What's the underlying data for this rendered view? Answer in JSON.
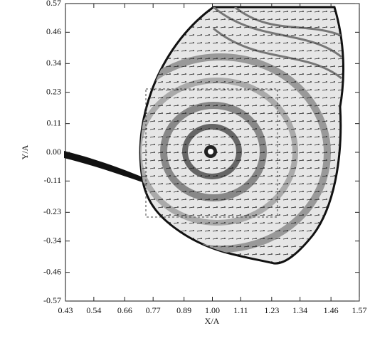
{
  "chart_data": {
    "type": "vector-field",
    "x_label": "X/A",
    "y_label": "Y/A",
    "xlim": [
      0.43,
      1.57
    ],
    "ylim": [
      -0.57,
      0.57
    ],
    "xticks": [
      0.43,
      0.54,
      0.66,
      0.77,
      0.89,
      {
        "value": 1,
        "label": "1.00"
      },
      1.11,
      1.23,
      1.34,
      1.46,
      1.57
    ],
    "yticks": [
      0.57,
      0.46,
      0.34,
      0.23,
      0.11,
      {
        "value": 0,
        "label": "0.00"
      },
      -0.11,
      -0.23,
      -0.34,
      -0.46,
      -0.57
    ]
  }
}
